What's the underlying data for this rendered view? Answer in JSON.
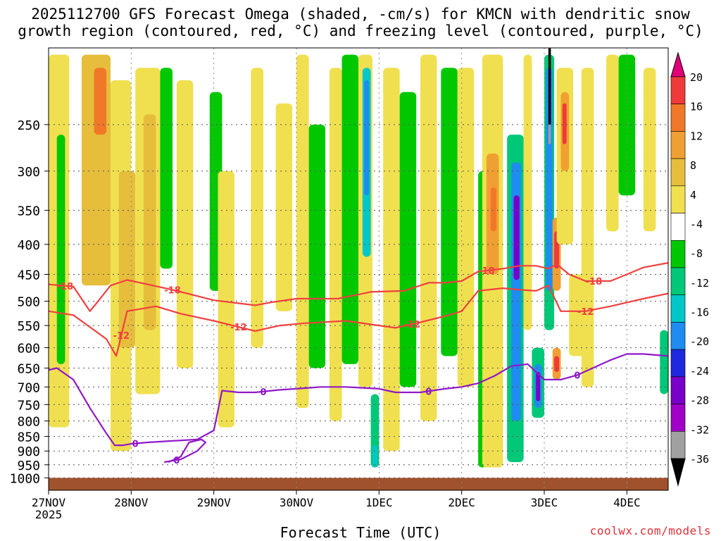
{
  "title": {
    "line1": "2025112700 GFS Forecast Omega (shaded, -cm/s) for KMCN with dendritic snow",
    "line2": "growth region (contoured, red, °C) and freezing level (contoured, purple, °C)"
  },
  "xlabel": "Forecast Time (UTC)",
  "credit": "coolwx.com/models",
  "chart_data": {
    "type": "heatmap",
    "x_ticks": [
      "27NOV",
      "28NOV",
      "29NOV",
      "30NOV",
      "1DEC",
      "2DEC",
      "3DEC",
      "4DEC"
    ],
    "x_year_label": "2025",
    "x_range_days": [
      0,
      7.5
    ],
    "y_scale": "log",
    "y_range_hpa": [
      1050,
      185
    ],
    "y_ticks": [
      250,
      300,
      350,
      400,
      450,
      500,
      550,
      600,
      650,
      700,
      750,
      800,
      850,
      900,
      950,
      1000
    ],
    "grid": true,
    "colorbar": {
      "labels": [
        "20",
        "16",
        "12",
        "8",
        "4",
        "-4",
        "-8",
        "-12",
        "-16",
        "-20",
        "-24",
        "-28",
        "-32",
        "-36"
      ],
      "colors": [
        "#e00078",
        "#f03a3a",
        "#f07828",
        "#f0a032",
        "#e6be3c",
        "#f0e050",
        "#ffffff",
        "#00c800",
        "#00c878",
        "#00c8c8",
        "#1e8cf0",
        "#1e28dc",
        "#7800c8",
        "#a000c8",
        "#a0a0a0",
        "#000000"
      ]
    },
    "shading_bands": [
      {
        "t0": 0.0,
        "t1": 0.25,
        "p_top": 190,
        "p_bot": 820,
        "level": 4
      },
      {
        "t0": 0.1,
        "t1": 0.2,
        "p_top": 260,
        "p_bot": 640,
        "level": -4
      },
      {
        "t0": 0.4,
        "t1": 0.75,
        "p_top": 190,
        "p_bot": 470,
        "level": 8
      },
      {
        "t0": 0.55,
        "t1": 0.7,
        "p_top": 200,
        "p_bot": 260,
        "level": 16
      },
      {
        "t0": 0.75,
        "t1": 1.0,
        "p_top": 210,
        "p_bot": 900,
        "level": 4
      },
      {
        "t0": 0.85,
        "t1": 1.05,
        "p_top": 300,
        "p_bot": 600,
        "level": 8
      },
      {
        "t0": 1.05,
        "t1": 1.35,
        "p_top": 200,
        "p_bot": 720,
        "level": 4
      },
      {
        "t0": 1.15,
        "t1": 1.3,
        "p_top": 240,
        "p_bot": 560,
        "level": 8
      },
      {
        "t0": 1.35,
        "t1": 1.5,
        "p_top": 200,
        "p_bot": 440,
        "level": -4
      },
      {
        "t0": 1.55,
        "t1": 1.75,
        "p_top": 210,
        "p_bot": 650,
        "level": 4
      },
      {
        "t0": 1.95,
        "t1": 2.1,
        "p_top": 220,
        "p_bot": 480,
        "level": -4
      },
      {
        "t0": 2.05,
        "t1": 2.25,
        "p_top": 300,
        "p_bot": 820,
        "level": 4
      },
      {
        "t0": 2.45,
        "t1": 2.6,
        "p_top": 200,
        "p_bot": 600,
        "level": 4
      },
      {
        "t0": 2.75,
        "t1": 2.95,
        "p_top": 230,
        "p_bot": 520,
        "level": 4
      },
      {
        "t0": 3.0,
        "t1": 3.15,
        "p_top": 190,
        "p_bot": 760,
        "level": 4
      },
      {
        "t0": 3.15,
        "t1": 3.35,
        "p_top": 250,
        "p_bot": 650,
        "level": -4
      },
      {
        "t0": 3.4,
        "t1": 3.55,
        "p_top": 200,
        "p_bot": 800,
        "level": 4
      },
      {
        "t0": 3.55,
        "t1": 3.75,
        "p_top": 190,
        "p_bot": 640,
        "level": -4
      },
      {
        "t0": 3.75,
        "t1": 3.92,
        "p_top": 190,
        "p_bot": 700,
        "level": 4
      },
      {
        "t0": 3.8,
        "t1": 3.9,
        "p_top": 200,
        "p_bot": 420,
        "level": -12
      },
      {
        "t0": 3.82,
        "t1": 3.88,
        "p_top": 210,
        "p_bot": 330,
        "level": -16
      },
      {
        "t0": 3.9,
        "t1": 4.0,
        "p_top": 720,
        "p_bot": 960,
        "level": -8
      },
      {
        "t0": 3.92,
        "t1": 3.98,
        "p_top": 880,
        "p_bot": 960,
        "level": -12
      },
      {
        "t0": 4.05,
        "t1": 4.25,
        "p_top": 200,
        "p_bot": 900,
        "level": 4
      },
      {
        "t0": 4.25,
        "t1": 4.45,
        "p_top": 220,
        "p_bot": 700,
        "level": -4
      },
      {
        "t0": 4.5,
        "t1": 4.7,
        "p_top": 190,
        "p_bot": 800,
        "level": 4
      },
      {
        "t0": 4.75,
        "t1": 4.95,
        "p_top": 200,
        "p_bot": 620,
        "level": -4
      },
      {
        "t0": 4.95,
        "t1": 5.15,
        "p_top": 200,
        "p_bot": 700,
        "level": 4
      },
      {
        "t0": 5.2,
        "t1": 5.3,
        "p_top": 300,
        "p_bot": 960,
        "level": -4
      },
      {
        "t0": 5.25,
        "t1": 5.5,
        "p_top": 190,
        "p_bot": 960,
        "level": 4
      },
      {
        "t0": 5.3,
        "t1": 5.45,
        "p_top": 280,
        "p_bot": 450,
        "level": 12
      },
      {
        "t0": 5.35,
        "t1": 5.42,
        "p_top": 320,
        "p_bot": 380,
        "level": 16
      },
      {
        "t0": 5.55,
        "t1": 5.75,
        "p_top": 260,
        "p_bot": 940,
        "level": -8
      },
      {
        "t0": 5.6,
        "t1": 5.72,
        "p_top": 290,
        "p_bot": 800,
        "level": -16
      },
      {
        "t0": 5.63,
        "t1": 5.7,
        "p_top": 330,
        "p_bot": 460,
        "level": -24
      },
      {
        "t0": 5.75,
        "t1": 5.85,
        "p_top": 190,
        "p_bot": 560,
        "level": 4
      },
      {
        "t0": 5.85,
        "t1": 6.0,
        "p_top": 600,
        "p_bot": 790,
        "level": -8
      },
      {
        "t0": 5.88,
        "t1": 5.97,
        "p_top": 640,
        "p_bot": 760,
        "level": -16
      },
      {
        "t0": 5.9,
        "t1": 5.95,
        "p_top": 660,
        "p_bot": 740,
        "level": -24
      },
      {
        "t0": 6.0,
        "t1": 6.12,
        "p_top": 190,
        "p_bot": 560,
        "level": -8
      },
      {
        "t0": 6.02,
        "t1": 6.1,
        "p_top": 200,
        "p_bot": 480,
        "level": -16
      },
      {
        "t0": 6.05,
        "t1": 6.08,
        "p_top": 185,
        "p_bot": 250,
        "level": -36
      },
      {
        "t0": 6.05,
        "t1": 6.08,
        "p_top": 250,
        "p_bot": 270,
        "level": -32
      },
      {
        "t0": 6.1,
        "t1": 6.2,
        "p_top": 360,
        "p_bot": 480,
        "level": 12
      },
      {
        "t0": 6.12,
        "t1": 6.18,
        "p_top": 380,
        "p_bot": 440,
        "level": 20
      },
      {
        "t0": 6.15,
        "t1": 6.35,
        "p_top": 200,
        "p_bot": 400,
        "level": 4
      },
      {
        "t0": 6.2,
        "t1": 6.3,
        "p_top": 220,
        "p_bot": 300,
        "level": 12
      },
      {
        "t0": 6.22,
        "t1": 6.27,
        "p_top": 230,
        "p_bot": 270,
        "level": 20
      },
      {
        "t0": 6.1,
        "t1": 6.2,
        "p_top": 600,
        "p_bot": 680,
        "level": 12
      },
      {
        "t0": 6.12,
        "t1": 6.18,
        "p_top": 620,
        "p_bot": 660,
        "level": 20
      },
      {
        "t0": 6.3,
        "t1": 6.5,
        "p_top": 450,
        "p_bot": 620,
        "level": 4
      },
      {
        "t0": 6.45,
        "t1": 6.6,
        "p_top": 200,
        "p_bot": 700,
        "level": 4
      },
      {
        "t0": 6.75,
        "t1": 6.9,
        "p_top": 190,
        "p_bot": 380,
        "level": 4
      },
      {
        "t0": 6.9,
        "t1": 7.1,
        "p_top": 190,
        "p_bot": 330,
        "level": -4
      },
      {
        "t0": 7.2,
        "t1": 7.35,
        "p_top": 200,
        "p_bot": 380,
        "level": 4
      },
      {
        "t0": 7.4,
        "t1": 7.5,
        "p_top": 560,
        "p_bot": 720,
        "level": -8
      }
    ],
    "contours": [
      {
        "name": "-18",
        "color": "#f04040",
        "t": [
          0.0,
          0.3,
          0.5,
          0.6,
          0.75,
          0.95,
          1.2,
          1.5,
          2.0,
          2.5,
          2.7,
          3.0,
          3.5,
          3.9,
          4.3,
          4.6,
          4.8,
          5.0,
          5.2,
          5.5,
          5.7,
          5.9,
          6.05,
          6.15,
          6.3,
          6.5,
          6.8,
          7.0,
          7.2,
          7.5
        ],
        "p": [
          468,
          472,
          520,
          500,
          470,
          460,
          468,
          478,
          498,
          508,
          502,
          495,
          495,
          482,
          480,
          465,
          465,
          462,
          445,
          440,
          435,
          435,
          440,
          432,
          450,
          462,
          462,
          450,
          438,
          430
        ],
        "labels": [
          0.2,
          1.5,
          5.3,
          6.6
        ]
      },
      {
        "name": "-12",
        "color": "#f04040",
        "t": [
          0.0,
          0.3,
          0.7,
          0.82,
          0.95,
          1.3,
          1.6,
          2.0,
          2.5,
          2.8,
          3.1,
          3.6,
          4.0,
          4.2,
          4.5,
          4.8,
          5.0,
          5.2,
          5.5,
          5.7,
          5.9,
          6.05,
          6.2,
          6.5,
          6.8,
          7.2,
          7.5
        ],
        "p": [
          520,
          528,
          580,
          620,
          520,
          510,
          525,
          540,
          562,
          550,
          545,
          540,
          550,
          555,
          543,
          530,
          520,
          480,
          475,
          478,
          480,
          470,
          520,
          520,
          510,
          495,
          485
        ],
        "labels": [
          0.88,
          2.3,
          4.4,
          6.5
        ]
      },
      {
        "name": "0",
        "color": "#9018c8",
        "t": [
          0.0,
          0.1,
          0.3,
          0.5,
          0.7,
          0.8,
          0.9,
          1.0,
          1.2,
          1.5,
          1.8,
          2.0,
          2.1,
          2.3,
          2.5,
          2.8,
          3.0,
          3.3,
          3.6,
          4.0,
          4.2,
          4.5,
          4.8,
          5.0,
          5.2,
          5.4,
          5.6,
          5.8,
          6.0,
          6.2,
          6.4,
          6.8,
          7.0,
          7.2,
          7.5
        ],
        "p": [
          655,
          650,
          680,
          760,
          840,
          880,
          880,
          875,
          870,
          865,
          860,
          830,
          710,
          715,
          715,
          708,
          705,
          700,
          700,
          705,
          715,
          715,
          705,
          700,
          690,
          670,
          645,
          640,
          680,
          680,
          668,
          630,
          615,
          615,
          620
        ],
        "labels": [
          1.05,
          2.6,
          4.6,
          6.4
        ]
      },
      {
        "name": "0",
        "color": "#9018c8",
        "t": [
          1.4,
          1.6,
          1.8,
          1.9,
          1.85,
          1.7,
          1.6,
          1.45
        ],
        "p": [
          940,
          930,
          900,
          870,
          860,
          870,
          920,
          940
        ],
        "labels": [
          1.55
        ]
      }
    ]
  }
}
